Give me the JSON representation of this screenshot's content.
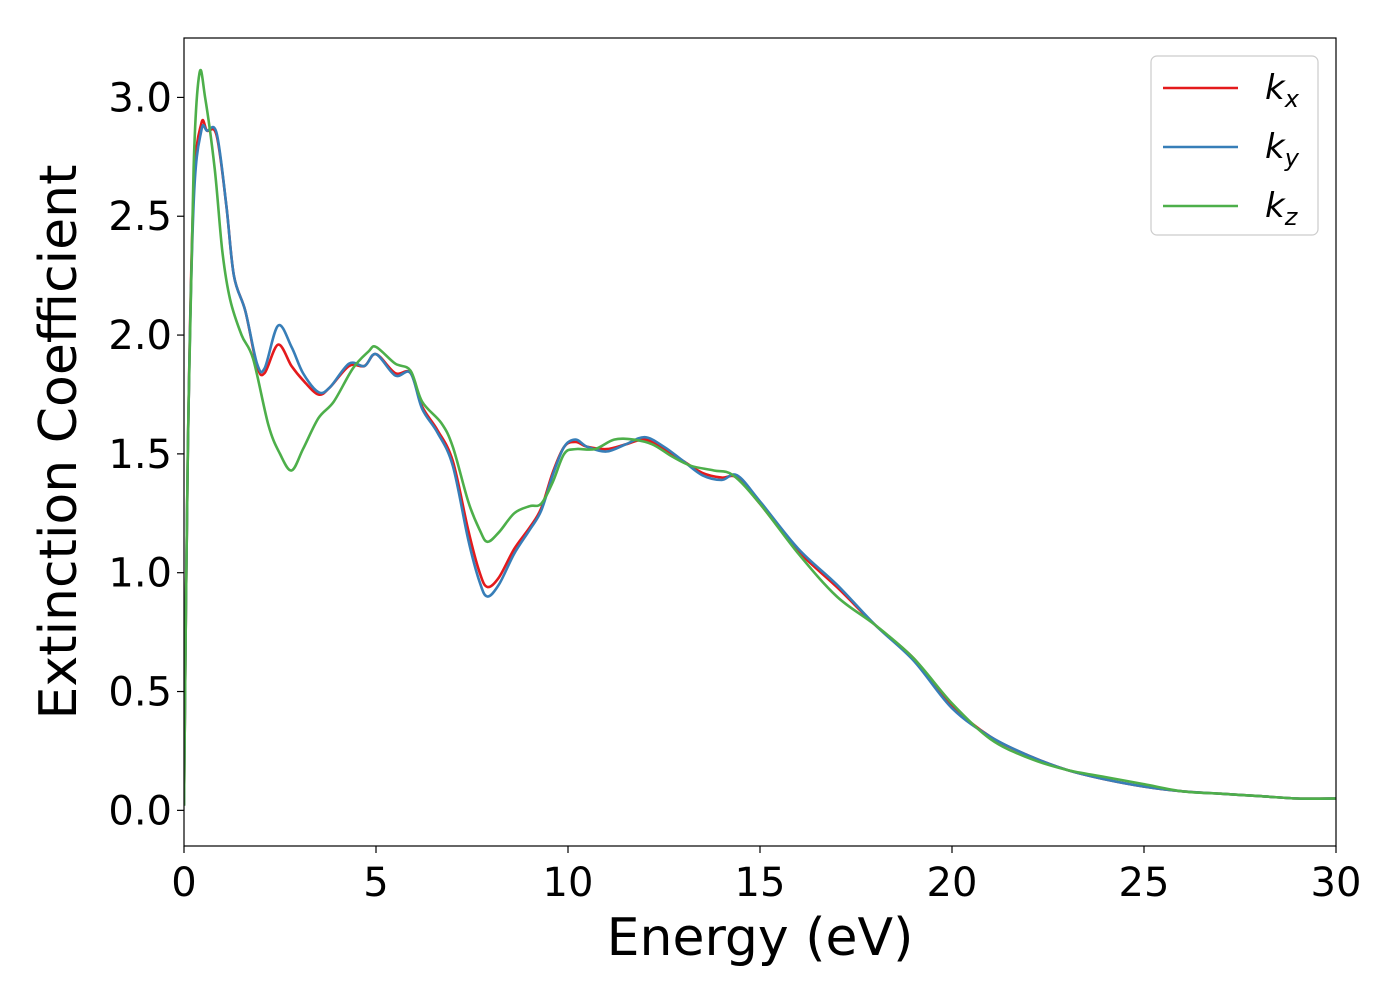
{
  "chart_data": {
    "type": "line",
    "title": "",
    "xlabel": "Energy (eV)",
    "ylabel": "Extinction Coefficient",
    "xlim": [
      0,
      30
    ],
    "ylim": [
      -0.15,
      3.25
    ],
    "x_ticks": [
      0,
      5,
      10,
      15,
      20,
      25,
      30
    ],
    "x_tick_labels": [
      "0",
      "5",
      "10",
      "15",
      "20",
      "25",
      "30"
    ],
    "y_ticks": [
      0.0,
      0.5,
      1.0,
      1.5,
      2.0,
      2.5,
      3.0
    ],
    "y_tick_labels": [
      "0.0",
      "0.5",
      "1.0",
      "1.5",
      "2.0",
      "2.5",
      "3.0"
    ],
    "grid": false,
    "legend_position": "top-right",
    "series": [
      {
        "name": "k",
        "subscript": "x",
        "color": "#e41a1c",
        "points": [
          [
            0.0,
            0.02
          ],
          [
            0.1,
            1.5
          ],
          [
            0.25,
            2.6
          ],
          [
            0.45,
            2.89
          ],
          [
            0.6,
            2.86
          ],
          [
            0.85,
            2.84
          ],
          [
            1.1,
            2.55
          ],
          [
            1.3,
            2.25
          ],
          [
            1.6,
            2.1
          ],
          [
            1.9,
            1.87
          ],
          [
            2.1,
            1.84
          ],
          [
            2.45,
            1.96
          ],
          [
            2.8,
            1.87
          ],
          [
            3.1,
            1.81
          ],
          [
            3.5,
            1.75
          ],
          [
            3.8,
            1.78
          ],
          [
            4.3,
            1.87
          ],
          [
            4.7,
            1.87
          ],
          [
            5.0,
            1.92
          ],
          [
            5.5,
            1.84
          ],
          [
            5.9,
            1.84
          ],
          [
            6.2,
            1.7
          ],
          [
            6.6,
            1.6
          ],
          [
            7.0,
            1.47
          ],
          [
            7.4,
            1.18
          ],
          [
            7.7,
            1.0
          ],
          [
            7.9,
            0.94
          ],
          [
            8.2,
            0.98
          ],
          [
            8.6,
            1.1
          ],
          [
            9.0,
            1.19
          ],
          [
            9.3,
            1.27
          ],
          [
            9.6,
            1.42
          ],
          [
            9.9,
            1.53
          ],
          [
            10.2,
            1.55
          ],
          [
            10.5,
            1.53
          ],
          [
            11.0,
            1.52
          ],
          [
            11.5,
            1.54
          ],
          [
            12.0,
            1.56
          ],
          [
            12.5,
            1.52
          ],
          [
            13.0,
            1.47
          ],
          [
            13.5,
            1.42
          ],
          [
            14.0,
            1.4
          ],
          [
            14.4,
            1.4
          ],
          [
            15.0,
            1.29
          ],
          [
            16.0,
            1.09
          ],
          [
            17.0,
            0.94
          ],
          [
            18.0,
            0.78
          ],
          [
            19.0,
            0.64
          ],
          [
            20.0,
            0.44
          ],
          [
            21.0,
            0.31
          ],
          [
            22.0,
            0.23
          ],
          [
            23.0,
            0.17
          ],
          [
            24.0,
            0.13
          ],
          [
            25.0,
            0.1
          ],
          [
            26.0,
            0.08
          ],
          [
            27.0,
            0.07
          ],
          [
            28.0,
            0.06
          ],
          [
            29.0,
            0.05
          ],
          [
            30.0,
            0.05
          ]
        ]
      },
      {
        "name": "k",
        "subscript": "y",
        "color": "#377eb8",
        "points": [
          [
            0.0,
            0.02
          ],
          [
            0.1,
            1.5
          ],
          [
            0.25,
            2.55
          ],
          [
            0.45,
            2.86
          ],
          [
            0.6,
            2.86
          ],
          [
            0.85,
            2.85
          ],
          [
            1.1,
            2.55
          ],
          [
            1.3,
            2.25
          ],
          [
            1.6,
            2.1
          ],
          [
            1.9,
            1.88
          ],
          [
            2.1,
            1.86
          ],
          [
            2.45,
            2.04
          ],
          [
            2.8,
            1.95
          ],
          [
            3.1,
            1.84
          ],
          [
            3.5,
            1.76
          ],
          [
            3.8,
            1.78
          ],
          [
            4.3,
            1.88
          ],
          [
            4.7,
            1.87
          ],
          [
            5.0,
            1.92
          ],
          [
            5.5,
            1.83
          ],
          [
            5.9,
            1.84
          ],
          [
            6.2,
            1.69
          ],
          [
            6.6,
            1.59
          ],
          [
            7.0,
            1.45
          ],
          [
            7.4,
            1.14
          ],
          [
            7.7,
            0.96
          ],
          [
            7.9,
            0.9
          ],
          [
            8.2,
            0.95
          ],
          [
            8.6,
            1.08
          ],
          [
            9.0,
            1.18
          ],
          [
            9.3,
            1.26
          ],
          [
            9.6,
            1.41
          ],
          [
            9.9,
            1.53
          ],
          [
            10.2,
            1.56
          ],
          [
            10.5,
            1.53
          ],
          [
            11.0,
            1.51
          ],
          [
            11.5,
            1.54
          ],
          [
            12.0,
            1.57
          ],
          [
            12.5,
            1.53
          ],
          [
            13.0,
            1.47
          ],
          [
            13.5,
            1.41
          ],
          [
            14.0,
            1.39
          ],
          [
            14.4,
            1.41
          ],
          [
            15.0,
            1.3
          ],
          [
            16.0,
            1.1
          ],
          [
            17.0,
            0.95
          ],
          [
            18.0,
            0.78
          ],
          [
            19.0,
            0.63
          ],
          [
            20.0,
            0.43
          ],
          [
            21.0,
            0.31
          ],
          [
            22.0,
            0.23
          ],
          [
            23.0,
            0.17
          ],
          [
            24.0,
            0.13
          ],
          [
            25.0,
            0.1
          ],
          [
            26.0,
            0.08
          ],
          [
            27.0,
            0.07
          ],
          [
            28.0,
            0.06
          ],
          [
            29.0,
            0.05
          ],
          [
            30.0,
            0.05
          ]
        ]
      },
      {
        "name": "k",
        "subscript": "z",
        "color": "#4daf4a",
        "points": [
          [
            0.0,
            0.02
          ],
          [
            0.1,
            1.5
          ],
          [
            0.25,
            2.7
          ],
          [
            0.4,
            3.1
          ],
          [
            0.55,
            3.0
          ],
          [
            0.8,
            2.7
          ],
          [
            1.0,
            2.35
          ],
          [
            1.2,
            2.15
          ],
          [
            1.5,
            2.0
          ],
          [
            1.8,
            1.9
          ],
          [
            2.2,
            1.62
          ],
          [
            2.5,
            1.5
          ],
          [
            2.8,
            1.43
          ],
          [
            3.1,
            1.52
          ],
          [
            3.5,
            1.65
          ],
          [
            3.9,
            1.72
          ],
          [
            4.4,
            1.86
          ],
          [
            4.8,
            1.93
          ],
          [
            5.0,
            1.95
          ],
          [
            5.5,
            1.88
          ],
          [
            5.9,
            1.85
          ],
          [
            6.2,
            1.72
          ],
          [
            6.7,
            1.63
          ],
          [
            7.0,
            1.53
          ],
          [
            7.4,
            1.3
          ],
          [
            7.7,
            1.18
          ],
          [
            7.9,
            1.13
          ],
          [
            8.2,
            1.17
          ],
          [
            8.6,
            1.25
          ],
          [
            9.0,
            1.28
          ],
          [
            9.3,
            1.29
          ],
          [
            9.6,
            1.38
          ],
          [
            9.9,
            1.5
          ],
          [
            10.2,
            1.52
          ],
          [
            10.7,
            1.52
          ],
          [
            11.2,
            1.56
          ],
          [
            11.7,
            1.56
          ],
          [
            12.2,
            1.54
          ],
          [
            12.7,
            1.49
          ],
          [
            13.2,
            1.45
          ],
          [
            13.8,
            1.43
          ],
          [
            14.3,
            1.41
          ],
          [
            15.0,
            1.29
          ],
          [
            16.0,
            1.08
          ],
          [
            17.0,
            0.9
          ],
          [
            18.0,
            0.78
          ],
          [
            19.0,
            0.64
          ],
          [
            20.0,
            0.45
          ],
          [
            21.0,
            0.3
          ],
          [
            22.0,
            0.22
          ],
          [
            23.0,
            0.17
          ],
          [
            24.0,
            0.14
          ],
          [
            25.0,
            0.11
          ],
          [
            26.0,
            0.08
          ],
          [
            27.0,
            0.07
          ],
          [
            28.0,
            0.06
          ],
          [
            29.0,
            0.05
          ],
          [
            30.0,
            0.05
          ]
        ]
      }
    ]
  }
}
